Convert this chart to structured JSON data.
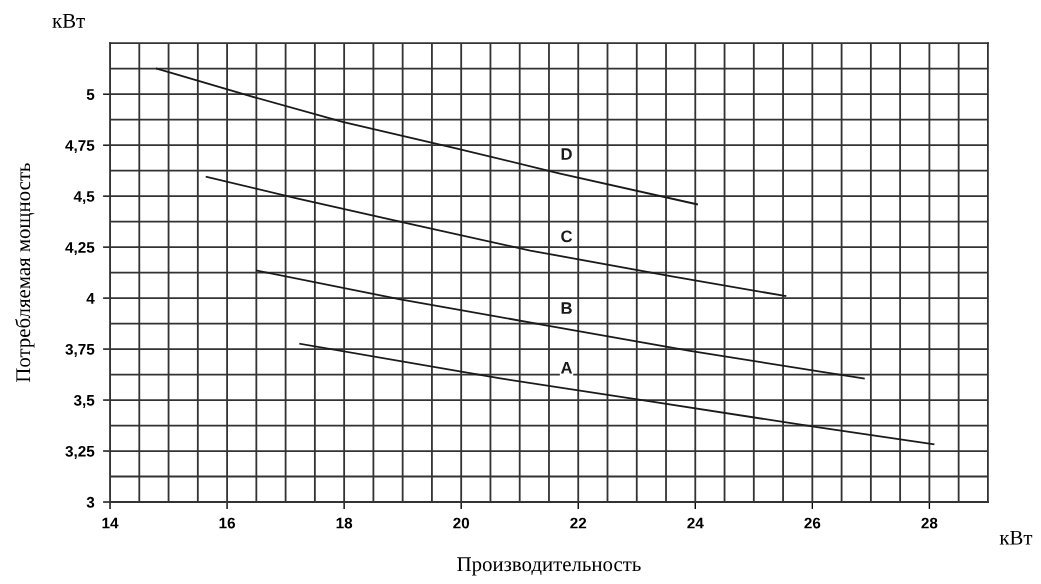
{
  "chart_data": {
    "type": "line",
    "xlabel": "Производительность",
    "ylabel": "Потребляемая мощность",
    "annotations": [
      "кВт",
      "кВт"
    ],
    "series": [
      {
        "name": "D",
        "color": "#1a1a1a",
        "x": [
          14.8,
          16.34,
          17.99,
          19.93,
          21.69,
          24.03
        ],
        "values": [
          5.125,
          4.995,
          4.863,
          4.733,
          4.611,
          4.46
        ]
      },
      {
        "name": "C",
        "color": "#1a1a1a",
        "x": [
          15.65,
          17.19,
          19.18,
          21.18,
          23.6,
          25.54
        ],
        "values": [
          4.595,
          4.489,
          4.36,
          4.233,
          4.107,
          4.01
        ]
      },
      {
        "name": "B",
        "color": "#1a1a1a",
        "x": [
          16.51,
          18.96,
          21.52,
          23.91,
          26.88
        ],
        "values": [
          4.135,
          3.994,
          3.863,
          3.741,
          3.606
        ]
      },
      {
        "name": "A",
        "color": "#1a1a1a",
        "x": [
          17.25,
          20.67,
          23.12,
          26.08,
          28.07
        ],
        "values": [
          3.776,
          3.606,
          3.498,
          3.367,
          3.283
        ]
      }
    ],
    "xlim": [
      14,
      29
    ],
    "xticks": [
      14,
      16,
      18,
      20,
      22,
      24,
      26,
      28
    ],
    "ylim": [
      3,
      5.25
    ],
    "yticks": [
      3,
      {
        "value": 3.25,
        "label": "3,25"
      },
      {
        "value": 3.5,
        "label": "3,5"
      },
      {
        "value": 3.75,
        "label": "3,75"
      },
      4,
      {
        "value": 4.25,
        "label": "4,25"
      },
      {
        "value": 4.5,
        "label": "4,5"
      },
      {
        "value": 4.75,
        "label": "4,75"
      },
      5
    ],
    "grid": true,
    "marker": "none",
    "line_style": "solid"
  }
}
